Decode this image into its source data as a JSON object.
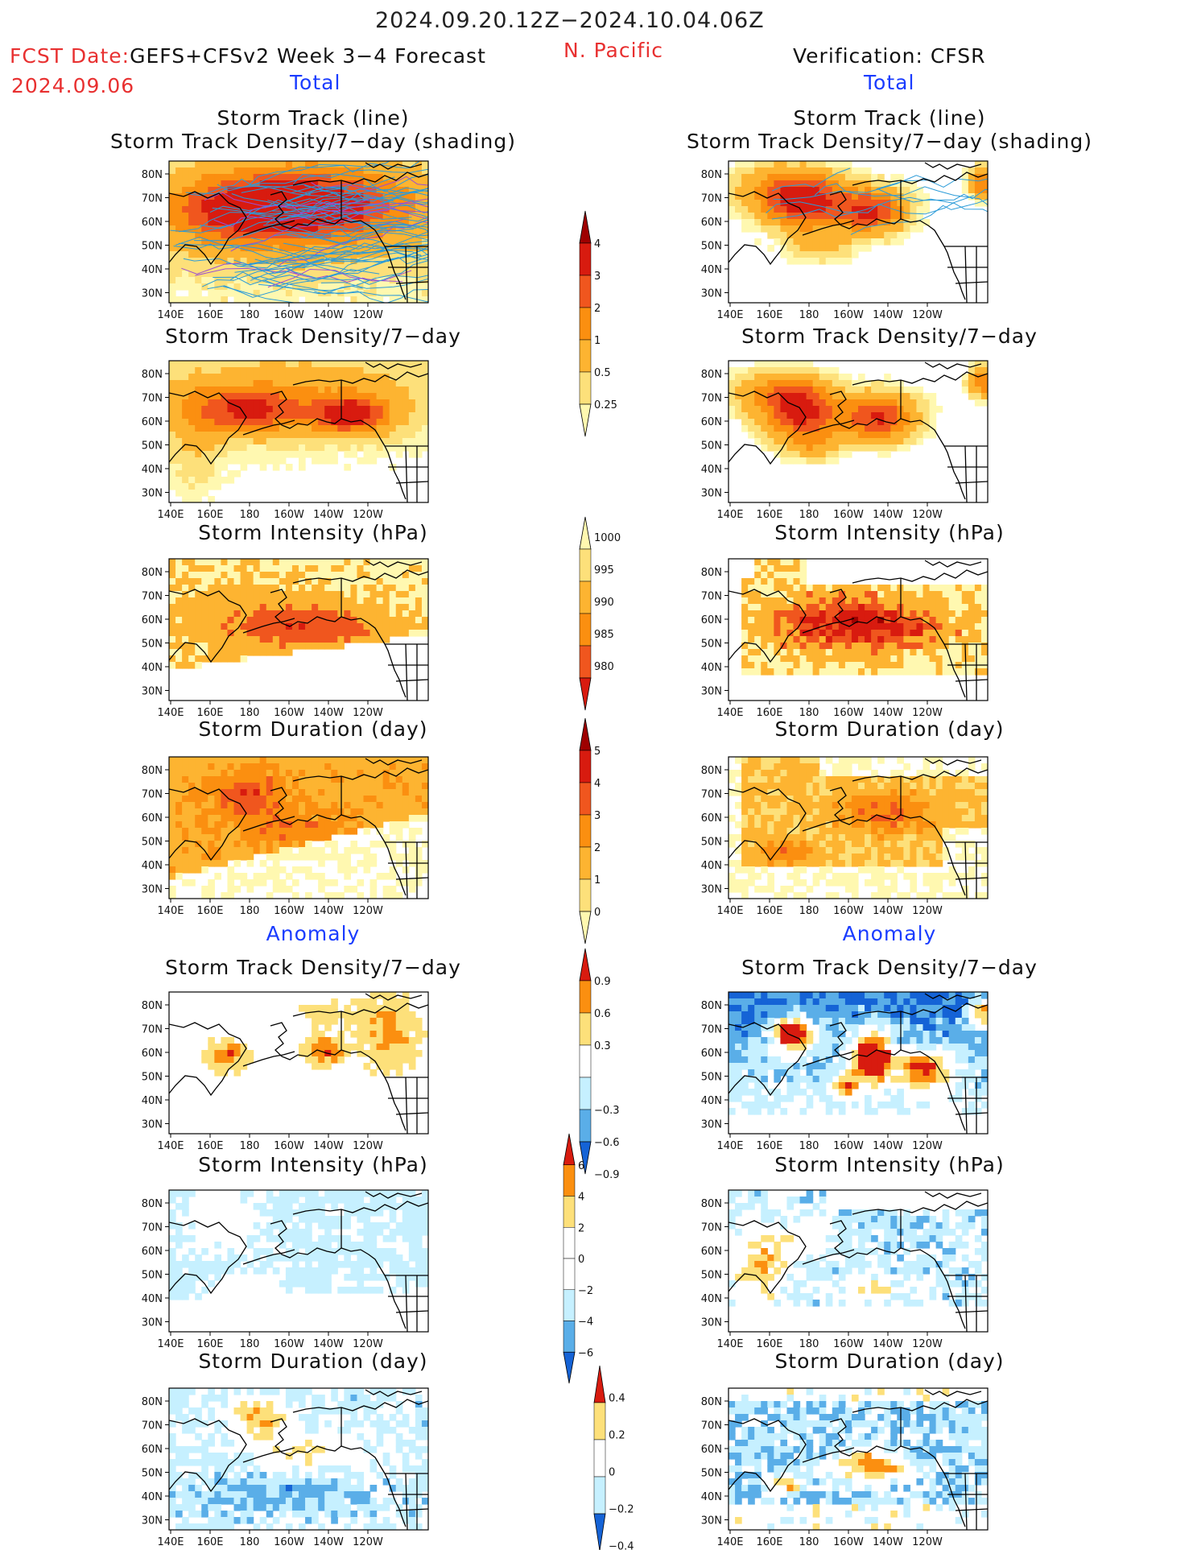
{
  "header": {
    "date_range": "2024.09.20.12Z−2024.10.04.06Z",
    "fcst_label": "FCST Date:",
    "fcst_model": "GEFS+CFSv2 Week 3−4 Forecast",
    "fcst_date": "2024.09.06",
    "region": "N. Pacific",
    "verification": "Verification: CFSR",
    "left_total": "Total",
    "right_total": "Total",
    "left_anomaly": "Anomaly",
    "right_anomaly": "Anomaly"
  },
  "panel_titles": {
    "track_line": "Storm Track (line)",
    "track_shading": "Storm Track Density/7−day (shading)",
    "density": "Storm Track Density/7−day",
    "intensity": "Storm Intensity (hPa)",
    "duration": "Storm Duration (day)"
  },
  "axes": {
    "lat_ticks": [
      "80N",
      "70N",
      "60N",
      "50N",
      "40N",
      "30N"
    ],
    "lon_ticks": [
      "140E",
      "160E",
      "180",
      "160W",
      "140W",
      "120W"
    ]
  },
  "colorbars": {
    "density_total": [
      "4",
      "3",
      "2",
      "1",
      "0.5",
      "0.25"
    ],
    "intensity_total": [
      "1000",
      "995",
      "990",
      "985",
      "980"
    ],
    "duration_total": [
      "5",
      "4",
      "3",
      "2",
      "1",
      "0"
    ],
    "density_anom": [
      "0.9",
      "0.6",
      "0.3",
      "−0.3",
      "−0.6",
      "−0.9"
    ],
    "intensity_anom": [
      "6",
      "4",
      "2",
      "0",
      "−2",
      "−4",
      "−6"
    ],
    "duration_anom": [
      "0.4",
      "0.2",
      "0",
      "−0.2",
      "−0.4"
    ]
  },
  "colors": {
    "warm": [
      "#fff8b0",
      "#fde07a",
      "#fdb431",
      "#fb8f10",
      "#f0561e",
      "#d81b0f",
      "#9e0000"
    ],
    "cool": [
      "#c6f0ff",
      "#8ad4f5",
      "#5aaee8",
      "#2f7fe0",
      "#1563d6"
    ],
    "track_line": "#2b9bd8"
  },
  "chart_data": [
    {
      "type": "heatmap",
      "panel": "forecast-total-track-line",
      "title": "Storm Track (line) / Storm Track Density/7-day (shading)",
      "levels": [
        0.25,
        0.5,
        1,
        2,
        3,
        4
      ]
    },
    {
      "type": "heatmap",
      "panel": "verification-total-track-line",
      "title": "Storm Track (line) / Storm Track Density/7-day (shading)",
      "levels": [
        0.25,
        0.5,
        1,
        2,
        3,
        4
      ]
    },
    {
      "type": "heatmap",
      "panel": "forecast-total-density",
      "title": "Storm Track Density/7-day",
      "levels": [
        0.25,
        0.5,
        1,
        2,
        3,
        4
      ]
    },
    {
      "type": "heatmap",
      "panel": "verification-total-density",
      "title": "Storm Track Density/7-day",
      "levels": [
        0.25,
        0.5,
        1,
        2,
        3,
        4
      ]
    },
    {
      "type": "heatmap",
      "panel": "forecast-total-intensity",
      "title": "Storm Intensity (hPa)",
      "levels": [
        980,
        985,
        990,
        995,
        1000
      ]
    },
    {
      "type": "heatmap",
      "panel": "verification-total-intensity",
      "title": "Storm Intensity (hPa)",
      "levels": [
        980,
        985,
        990,
        995,
        1000
      ]
    },
    {
      "type": "heatmap",
      "panel": "forecast-total-duration",
      "title": "Storm Duration (day)",
      "levels": [
        0,
        1,
        2,
        3,
        4,
        5
      ]
    },
    {
      "type": "heatmap",
      "panel": "verification-total-duration",
      "title": "Storm Duration (day)",
      "levels": [
        0,
        1,
        2,
        3,
        4,
        5
      ]
    },
    {
      "type": "heatmap",
      "panel": "forecast-anomaly-density",
      "title": "Storm Track Density/7-day",
      "levels": [
        -0.9,
        -0.6,
        -0.3,
        0.3,
        0.6,
        0.9
      ]
    },
    {
      "type": "heatmap",
      "panel": "verification-anomaly-density",
      "title": "Storm Track Density/7-day",
      "levels": [
        -0.9,
        -0.6,
        -0.3,
        0.3,
        0.6,
        0.9
      ]
    },
    {
      "type": "heatmap",
      "panel": "forecast-anomaly-intensity",
      "title": "Storm Intensity (hPa)",
      "levels": [
        -6,
        -4,
        -2,
        0,
        2,
        4,
        6
      ]
    },
    {
      "type": "heatmap",
      "panel": "verification-anomaly-intensity",
      "title": "Storm Intensity (hPa)",
      "levels": [
        -6,
        -4,
        -2,
        0,
        2,
        4,
        6
      ]
    },
    {
      "type": "heatmap",
      "panel": "forecast-anomaly-duration",
      "title": "Storm Duration (day)",
      "levels": [
        -0.4,
        -0.2,
        0,
        0.2,
        0.4
      ]
    },
    {
      "type": "heatmap",
      "panel": "verification-anomaly-duration",
      "title": "Storm Duration (day)",
      "levels": [
        -0.4,
        -0.2,
        0,
        0.2,
        0.4
      ]
    }
  ]
}
